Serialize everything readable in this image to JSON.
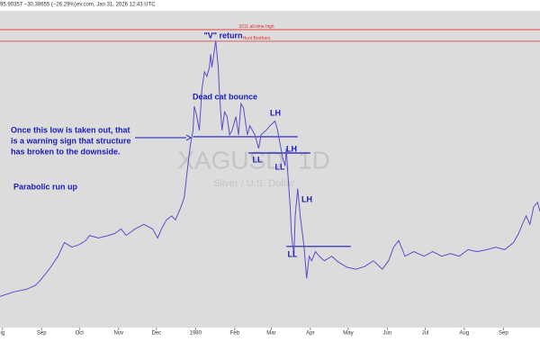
{
  "chart_data": {
    "type": "line",
    "header": "ev.com, Jan 31, 2026 12:43 UTC",
    "quote": "95.90357 −30.38655 (−26.29%)",
    "watermark": "XAGUSD, 1D",
    "watermark_subtitle": "Silver / U.S. Dollar",
    "color": "#5b4fc9",
    "x": [
      -2,
      9,
      19,
      26,
      30,
      37,
      44,
      49,
      55,
      61,
      66,
      69,
      76,
      84,
      89,
      94,
      98,
      105,
      112,
      119,
      123,
      126,
      130,
      134,
      137,
      141,
      144,
      146,
      149,
      151,
      152,
      154,
      156,
      158,
      160,
      162,
      164,
      165,
      166,
      168,
      169,
      171,
      172,
      174,
      176,
      178,
      180,
      182,
      185,
      187,
      189,
      191,
      194,
      196,
      198,
      200,
      203,
      205,
      209,
      212,
      216,
      218,
      220,
      222,
      224,
      225,
      226,
      228,
      229,
      231,
      232,
      234,
      236,
      239,
      241,
      243,
      245,
      248,
      251,
      255,
      261,
      266,
      273,
      280,
      287,
      294,
      301,
      306,
      310,
      314,
      319,
      326,
      334,
      341,
      348,
      355,
      362,
      369,
      376,
      384,
      391,
      398,
      405,
      409,
      412,
      415,
      418,
      421,
      424,
      426
    ],
    "values": [
      9.5,
      10.2,
      10.6,
      11.2,
      12.0,
      13.7,
      15.7,
      17.8,
      17.1,
      17.5,
      18.1,
      18.9,
      18.5,
      18.9,
      19.2,
      19.9,
      18.9,
      19.9,
      20.6,
      19.9,
      18.5,
      19.9,
      21.3,
      21.9,
      21.3,
      23.1,
      24.7,
      28.2,
      33.0,
      35.1,
      38.8,
      37.2,
      35.1,
      41.3,
      44.1,
      43.4,
      44.8,
      46.8,
      44.8,
      47.5,
      48.9,
      44.8,
      40.6,
      35.1,
      37.9,
      37.2,
      34.4,
      35.1,
      37.2,
      34.4,
      39.2,
      38.5,
      34.4,
      35.8,
      35.1,
      34.4,
      32.3,
      34.4,
      35.1,
      35.8,
      36.5,
      35.1,
      33.0,
      30.9,
      29.6,
      32.3,
      28.9,
      23.3,
      19.2,
      15.7,
      21.9,
      26.1,
      21.9,
      17.1,
      12.3,
      15.7,
      15.0,
      16.4,
      15.7,
      15.0,
      15.7,
      14.8,
      14.0,
      13.7,
      14.1,
      15.0,
      13.7,
      15.0,
      17.1,
      18.1,
      15.7,
      16.4,
      15.7,
      16.4,
      15.7,
      16.1,
      15.7,
      16.7,
      16.4,
      16.7,
      17.1,
      16.7,
      17.8,
      19.2,
      20.6,
      21.9,
      20.6,
      23.3,
      24.0,
      22.6
    ],
    "xlim": [
      -2,
      426
    ],
    "ylim": [
      4.7,
      53.5
    ],
    "xticks": [
      {
        "value": 0,
        "label": "ig"
      },
      {
        "value": 31,
        "label": "Sep"
      },
      {
        "value": 61,
        "label": "Oct"
      },
      {
        "value": 92,
        "label": "Nov"
      },
      {
        "value": 122,
        "label": "Dec"
      },
      {
        "value": 153,
        "label": "1980"
      },
      {
        "value": 184,
        "label": "Feb"
      },
      {
        "value": 213,
        "label": "Mar"
      },
      {
        "value": 244,
        "label": "Apr"
      },
      {
        "value": 274,
        "label": "May"
      },
      {
        "value": 305,
        "label": "Jun"
      },
      {
        "value": 335,
        "label": "Jul"
      },
      {
        "value": 366,
        "label": "Aug"
      },
      {
        "value": 397,
        "label": "Sep"
      }
    ],
    "reference_lines": [
      {
        "label": "2011 all-time high",
        "value": 50.6,
        "color": "#e03030"
      },
      {
        "label": "Hunt Brothers",
        "value": 48.8,
        "color": "#e03030"
      }
    ],
    "level_lines": [
      {
        "x": [
          151,
          234
        ],
        "value": 34.1
      },
      {
        "x": [
          195,
          244
        ],
        "value": 31.6
      },
      {
        "x": [
          225,
          276
        ],
        "value": 17.2
      }
    ],
    "annotations": [
      "\"V\" return",
      "Dead cat bounce",
      "LH",
      "LH",
      "LL",
      "LL",
      "LH",
      "LL",
      "Once this low is taken out, that",
      "is a warning sign that structure",
      "has broken to the downside.",
      "Parabolic run up"
    ]
  }
}
